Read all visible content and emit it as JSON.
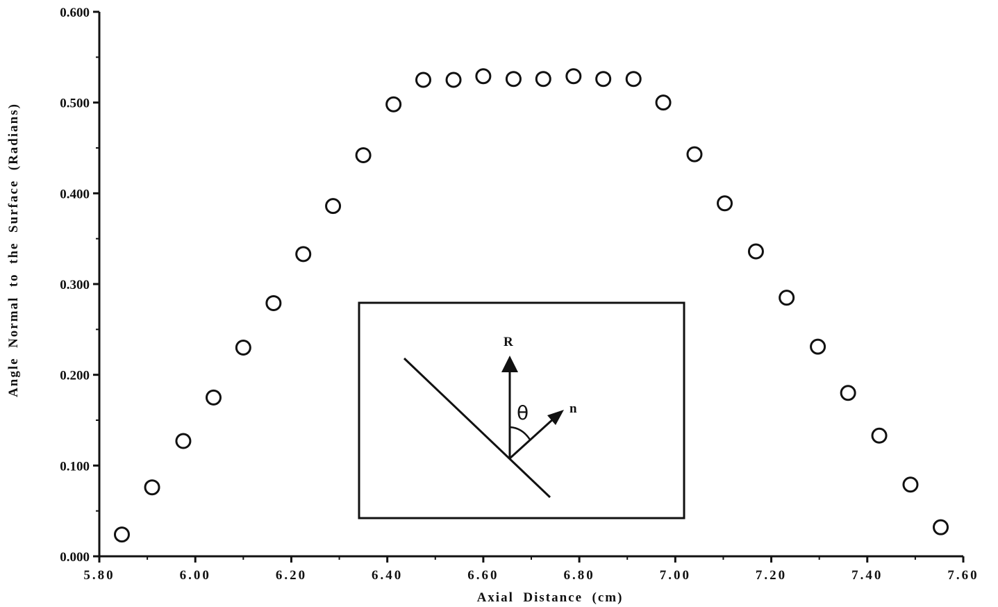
{
  "chart_data": {
    "type": "scatter",
    "title": "",
    "xlabel": "Axial  Distance  (cm)",
    "ylabel": "Angle  Normal  to  the  Surface  (Radians)",
    "xlim": [
      5.8,
      7.6
    ],
    "ylim": [
      0.0,
      0.6
    ],
    "x_ticks": [
      5.8,
      6.0,
      6.2,
      6.4,
      6.6,
      6.8,
      7.0,
      7.2,
      7.4,
      7.6
    ],
    "x_tick_labels": [
      "5.80",
      "6.00",
      "6.20",
      "6.40",
      "6.60",
      "6.80",
      "7.00",
      "7.20",
      "7.40",
      "7.60"
    ],
    "y_ticks": [
      0.0,
      0.1,
      0.2,
      0.3,
      0.4,
      0.5,
      0.6
    ],
    "y_tick_labels": [
      "0.000",
      "0.100",
      "0.200",
      "0.300",
      "0.400",
      "0.500",
      "0.600"
    ],
    "grid": false,
    "legend": "none",
    "marker": "open-circle",
    "series": [
      {
        "x": [
          5.847,
          5.91,
          5.975,
          6.038,
          6.1,
          6.163,
          6.225,
          6.287,
          6.35,
          6.413,
          6.475,
          6.538,
          6.6,
          6.663,
          6.725,
          6.788,
          6.85,
          6.913,
          6.975,
          7.04,
          7.103,
          7.168,
          7.232,
          7.297,
          7.36,
          7.425,
          7.49,
          7.553
        ],
        "y": [
          0.024,
          0.076,
          0.127,
          0.175,
          0.23,
          0.279,
          0.333,
          0.386,
          0.442,
          0.498,
          0.525,
          0.525,
          0.529,
          0.526,
          0.526,
          0.529,
          0.526,
          0.526,
          0.5,
          0.443,
          0.389,
          0.336,
          0.285,
          0.231,
          0.18,
          0.133,
          0.079,
          0.032
        ]
      }
    ],
    "inset": {
      "vector_up_label": "R",
      "vector_normal_label": "n",
      "angle_label": "θ"
    }
  }
}
